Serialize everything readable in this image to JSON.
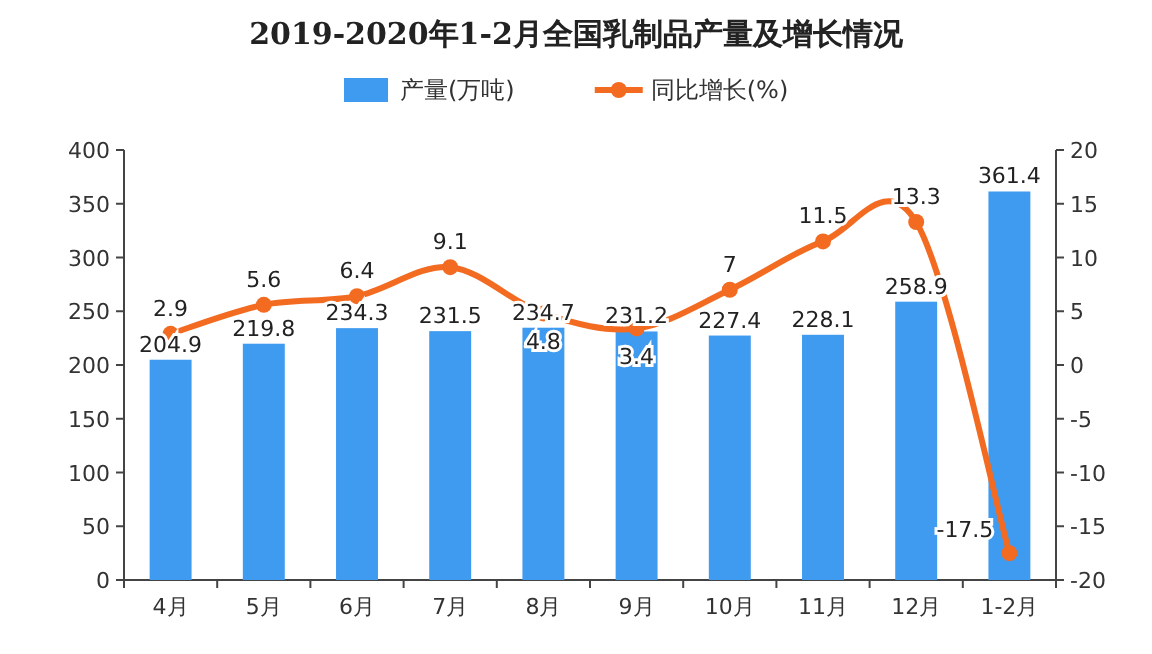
{
  "chart_data": {
    "type": "bar",
    "title": "2019-2020年1-2月全国乳制品产量及增长情况",
    "categories": [
      "4月",
      "5月",
      "6月",
      "7月",
      "8月",
      "9月",
      "10月",
      "11月",
      "12月",
      "1-2月"
    ],
    "series": [
      {
        "name": "产量(万吨)",
        "color": "#3f9bf0",
        "values": [
          204.9,
          219.8,
          234.3,
          231.5,
          234.7,
          231.2,
          227.4,
          228.1,
          258.9,
          361.4
        ]
      },
      {
        "name": "同比增长(%)",
        "type": "line",
        "axis": "y2",
        "color": "#f26b21",
        "marker": "circle",
        "values": [
          2.9,
          5.6,
          6.4,
          9.1,
          4.8,
          3.4,
          7,
          11.5,
          13.3,
          -17.5
        ]
      }
    ],
    "ylim": [
      0,
      400
    ],
    "yticks": [
      0,
      50,
      100,
      150,
      200,
      250,
      300,
      350,
      400
    ],
    "y2lim": [
      -20,
      20
    ],
    "y2ticks": [
      -20,
      -15,
      -10,
      -5,
      0,
      5,
      10,
      15,
      20
    ],
    "data_labels": true,
    "legend": "top"
  }
}
